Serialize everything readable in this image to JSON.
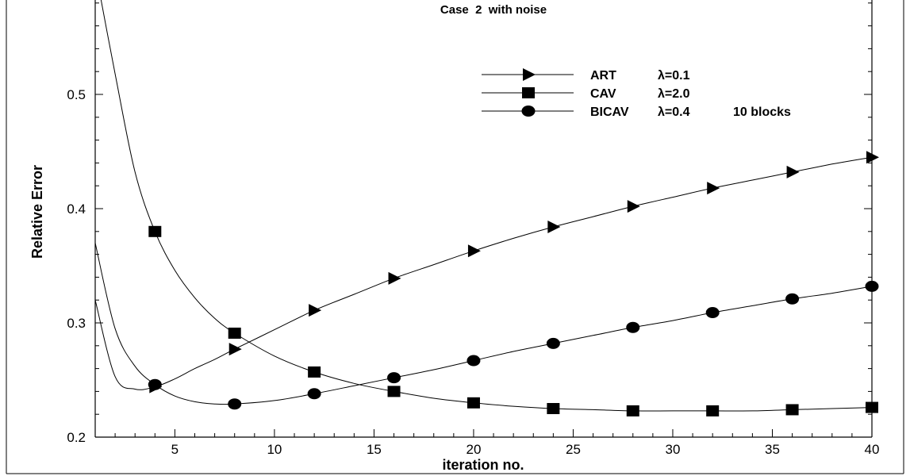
{
  "chart_data": {
    "type": "line",
    "title": "Case  2  with noise",
    "xlabel": "iteration no.",
    "ylabel": "Relative Error",
    "xlim": [
      1,
      40
    ],
    "ylim": [
      0.2,
      0.6
    ],
    "x_ticks": [
      5,
      10,
      15,
      20,
      25,
      30,
      35,
      40
    ],
    "y_ticks": [
      0.2,
      0.3,
      0.4,
      0.5
    ],
    "x_tick_labels": [
      "5",
      "10",
      "15",
      "20",
      "25",
      "30",
      "35",
      "40"
    ],
    "y_tick_labels": [
      "0.2",
      "0.3",
      "0.4",
      "0.5"
    ],
    "legend_position": "top-right",
    "grid": false,
    "series": [
      {
        "name": "ART",
        "param": "λ=0.1",
        "blocks": "",
        "marker": "triangle-right",
        "x": [
          1,
          2,
          3,
          4,
          5,
          6,
          7,
          8,
          10,
          12,
          14,
          16,
          18,
          20,
          22,
          24,
          26,
          28,
          30,
          32,
          34,
          36,
          38,
          40
        ],
        "y": [
          0.32,
          0.253,
          0.242,
          0.244,
          0.251,
          0.26,
          0.268,
          0.277,
          0.294,
          0.311,
          0.325,
          0.339,
          0.351,
          0.363,
          0.374,
          0.384,
          0.393,
          0.402,
          0.41,
          0.418,
          0.425,
          0.432,
          0.439,
          0.445
        ],
        "marker_x": [
          4,
          8,
          12,
          16,
          20,
          24,
          28,
          32,
          36,
          40
        ],
        "marker_y": [
          0.244,
          0.277,
          0.311,
          0.339,
          0.363,
          0.384,
          0.402,
          0.418,
          0.432,
          0.445
        ]
      },
      {
        "name": "CAV",
        "param": "λ=2.0",
        "blocks": "",
        "marker": "square",
        "x": [
          1,
          2,
          3,
          4,
          5,
          6,
          7,
          8,
          10,
          12,
          14,
          16,
          18,
          20,
          22,
          24,
          26,
          28,
          30,
          32,
          34,
          36,
          38,
          40
        ],
        "y": [
          0.61,
          0.518,
          0.432,
          0.38,
          0.346,
          0.322,
          0.304,
          0.291,
          0.271,
          0.257,
          0.247,
          0.24,
          0.234,
          0.23,
          0.227,
          0.225,
          0.224,
          0.223,
          0.223,
          0.223,
          0.223,
          0.224,
          0.225,
          0.226
        ],
        "marker_x": [
          4,
          8,
          12,
          16,
          20,
          24,
          28,
          32,
          36,
          40
        ],
        "marker_y": [
          0.38,
          0.291,
          0.257,
          0.24,
          0.23,
          0.225,
          0.223,
          0.223,
          0.224,
          0.226
        ]
      },
      {
        "name": "BICAV",
        "param": "λ=0.4",
        "blocks": "10 blocks",
        "marker": "circle",
        "x": [
          1,
          2,
          3,
          4,
          5,
          6,
          7,
          8,
          10,
          12,
          14,
          16,
          18,
          20,
          22,
          24,
          26,
          28,
          30,
          32,
          34,
          36,
          38,
          40
        ],
        "y": [
          0.37,
          0.295,
          0.262,
          0.246,
          0.236,
          0.231,
          0.229,
          0.229,
          0.232,
          0.238,
          0.245,
          0.252,
          0.259,
          0.267,
          0.275,
          0.282,
          0.289,
          0.296,
          0.302,
          0.309,
          0.315,
          0.321,
          0.326,
          0.332
        ],
        "marker_x": [
          4,
          8,
          12,
          16,
          20,
          24,
          28,
          32,
          36,
          40
        ],
        "marker_y": [
          0.246,
          0.229,
          0.238,
          0.252,
          0.267,
          0.282,
          0.296,
          0.309,
          0.321,
          0.332
        ]
      }
    ]
  }
}
